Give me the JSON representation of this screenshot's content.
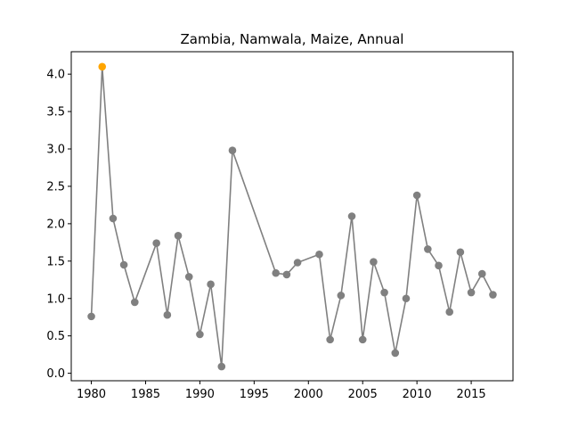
{
  "chart_data": {
    "type": "line",
    "title": "Zambia, Namwala, Maize, Annual",
    "xlabel": "",
    "ylabel": "",
    "xlim": [
      1978.15,
      2018.85
    ],
    "ylim": [
      -0.1,
      4.3
    ],
    "xticks": [
      1980,
      1985,
      1990,
      1995,
      2000,
      2005,
      2010,
      2015
    ],
    "yticks": [
      0.0,
      0.5,
      1.0,
      1.5,
      2.0,
      2.5,
      3.0,
      3.5,
      4.0
    ],
    "xtick_labels": [
      "1980",
      "1985",
      "1990",
      "1995",
      "2000",
      "2005",
      "2010",
      "2015"
    ],
    "ytick_labels": [
      "0.0",
      "0.5",
      "1.0",
      "1.5",
      "2.0",
      "2.5",
      "3.0",
      "3.5",
      "4.0"
    ],
    "grid": false,
    "line_color": "#808080",
    "highlight_color": "#FFA500",
    "highlight_year": 1981,
    "series": [
      {
        "x": [
          1980,
          1981,
          1982,
          1983,
          1984,
          1986,
          1987,
          1988,
          1989,
          1990,
          1991,
          1992,
          1993,
          1997,
          1998,
          1999,
          2001,
          2002,
          2003,
          2004,
          2005,
          2006,
          2007,
          2008,
          2009,
          2010,
          2011,
          2012,
          2013,
          2014,
          2015,
          2016,
          2017
        ],
        "y": [
          0.76,
          4.1,
          2.07,
          1.45,
          0.95,
          1.74,
          0.78,
          1.84,
          1.29,
          0.52,
          1.19,
          0.09,
          2.98,
          1.34,
          1.32,
          1.48,
          1.59,
          0.45,
          1.04,
          2.1,
          0.45,
          1.49,
          1.08,
          0.27,
          1.0,
          2.38,
          1.66,
          1.44,
          0.82,
          1.62,
          1.08,
          1.33,
          1.05
        ]
      }
    ]
  }
}
